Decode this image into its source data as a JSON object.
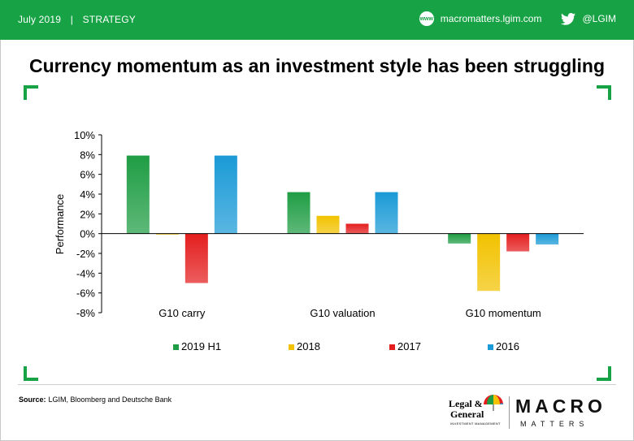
{
  "header": {
    "date": "July 2019",
    "separator": "|",
    "section": "STRATEGY",
    "website": "macromatters.lgim.com",
    "web_icon_text": "www",
    "twitter": "@LGIM"
  },
  "colors": {
    "brand_green": "#17a345"
  },
  "chart_data": {
    "type": "bar",
    "title": "Currency momentum as an investment style has been struggling",
    "ylabel": "Performance",
    "xlabel": "",
    "categories": [
      "G10 carry",
      "G10 valuation",
      "G10 momentum"
    ],
    "series": [
      {
        "name": "2019 H1",
        "color": "#1f9d44",
        "values": [
          7.9,
          4.2,
          -1.0
        ]
      },
      {
        "name": "2018",
        "color": "#f2c200",
        "values": [
          -0.1,
          1.8,
          -5.8
        ]
      },
      {
        "name": "2017",
        "color": "#e41e1e",
        "values": [
          -5.0,
          1.0,
          -1.8
        ]
      },
      {
        "name": "2016",
        "color": "#1a9ad6",
        "values": [
          7.9,
          4.2,
          -1.1
        ]
      }
    ],
    "ylim": [
      -8,
      10
    ],
    "yticks": [
      "-8%",
      "-6%",
      "-4%",
      "-2%",
      "0%",
      "2%",
      "4%",
      "6%",
      "8%",
      "10%"
    ],
    "legend_position": "bottom",
    "grid": false
  },
  "footer": {
    "source_label": "Source:",
    "source_text": "LGIM, Bloomberg and Deutsche Bank",
    "lg_line1": "Legal &",
    "lg_line2": "General",
    "lg_line3": "INVESTMENT MANAGEMENT",
    "brand_macro": "MACRO",
    "brand_matters": "MATTERS"
  }
}
